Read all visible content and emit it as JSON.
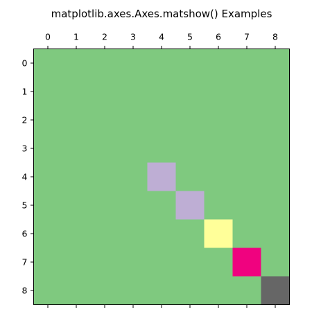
{
  "chart_data": {
    "type": "heatmap",
    "title": "matplotlib.axes.Axes.matshow() Examples",
    "xlabel": "",
    "ylabel": "",
    "x_ticks": [
      "0",
      "1",
      "2",
      "3",
      "4",
      "5",
      "6",
      "7",
      "8"
    ],
    "y_ticks": [
      "0",
      "1",
      "2",
      "3",
      "4",
      "5",
      "6",
      "7",
      "8"
    ],
    "x_axis_position": "top",
    "grid": false,
    "colormap": "Accent",
    "matrix": [
      [
        0,
        0,
        0,
        0,
        0,
        0,
        0,
        0,
        0
      ],
      [
        0,
        0,
        0,
        0,
        0,
        0,
        0,
        0,
        0
      ],
      [
        0,
        0,
        0,
        0,
        0,
        0,
        0,
        0,
        0
      ],
      [
        0,
        0,
        0,
        0,
        0,
        0,
        0,
        0,
        0
      ],
      [
        0,
        0,
        0,
        0,
        4,
        0,
        0,
        0,
        0
      ],
      [
        0,
        0,
        0,
        0,
        0,
        5,
        0,
        0,
        0
      ],
      [
        0,
        0,
        0,
        0,
        0,
        0,
        6,
        0,
        0
      ],
      [
        0,
        0,
        0,
        0,
        0,
        0,
        0,
        7,
        0
      ],
      [
        0,
        0,
        0,
        0,
        0,
        0,
        0,
        0,
        8
      ]
    ],
    "value_colors": {
      "0": "#7fc97f",
      "4": "#beaed4",
      "5": "#beaed4",
      "6": "#ffff99",
      "7": "#f0027f",
      "8": "#666666"
    }
  }
}
